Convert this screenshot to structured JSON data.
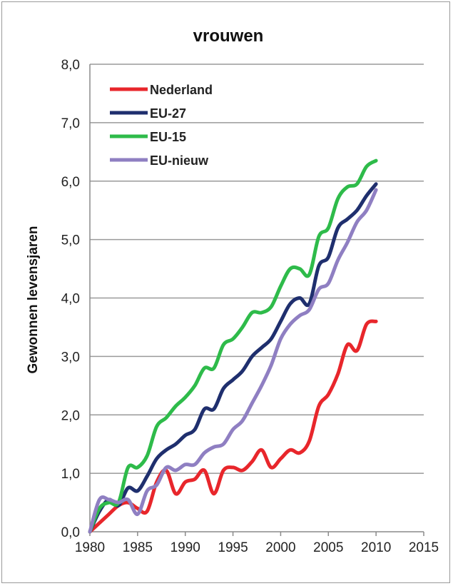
{
  "chart_data": {
    "type": "line",
    "title": "vrouwen",
    "xlabel": "",
    "ylabel": "Gewonnen levensjaren",
    "xlim": [
      1980,
      2015
    ],
    "ylim": [
      0,
      8
    ],
    "x_ticks": [
      1980,
      1985,
      1990,
      1995,
      2000,
      2005,
      2010,
      2015
    ],
    "y_ticks": [
      "0,0",
      "1,0",
      "2,0",
      "3,0",
      "4,0",
      "5,0",
      "6,0",
      "7,0",
      "8,0"
    ],
    "grid": "horizontal",
    "legend_position": "top-left",
    "x": [
      1980,
      1981,
      1982,
      1983,
      1984,
      1985,
      1986,
      1987,
      1988,
      1989,
      1990,
      1991,
      1992,
      1993,
      1994,
      1995,
      1996,
      1997,
      1998,
      1999,
      2000,
      2001,
      2002,
      2003,
      2004,
      2005,
      2006,
      2007,
      2008,
      2009,
      2010
    ],
    "series": [
      {
        "name": "Nederland",
        "color": "#e8262b",
        "values": [
          0.0,
          0.15,
          0.3,
          0.45,
          0.5,
          0.4,
          0.35,
          0.85,
          1.05,
          0.65,
          0.85,
          0.9,
          1.05,
          0.65,
          1.05,
          1.1,
          1.05,
          1.2,
          1.4,
          1.1,
          1.25,
          1.4,
          1.35,
          1.55,
          2.15,
          2.35,
          2.7,
          3.2,
          3.1,
          3.55,
          3.6
        ]
      },
      {
        "name": "EU-27",
        "color": "#1f2f6e",
        "values": [
          0.0,
          0.35,
          0.55,
          0.45,
          0.75,
          0.7,
          0.95,
          1.25,
          1.4,
          1.5,
          1.65,
          1.75,
          2.1,
          2.1,
          2.45,
          2.6,
          2.75,
          3.0,
          3.15,
          3.3,
          3.6,
          3.9,
          4.0,
          3.9,
          4.55,
          4.7,
          5.2,
          5.35,
          5.5,
          5.75,
          5.95
        ]
      },
      {
        "name": "EU-15",
        "color": "#2ebb4a",
        "values": [
          0.0,
          0.4,
          0.5,
          0.5,
          1.1,
          1.1,
          1.3,
          1.8,
          1.95,
          2.15,
          2.3,
          2.5,
          2.8,
          2.8,
          3.2,
          3.3,
          3.5,
          3.75,
          3.75,
          3.85,
          4.2,
          4.5,
          4.5,
          4.4,
          5.05,
          5.2,
          5.7,
          5.9,
          5.95,
          6.25,
          6.35
        ]
      },
      {
        "name": "EU-nieuw",
        "color": "#8f7fc2",
        "values": [
          0.0,
          0.55,
          0.55,
          0.5,
          0.55,
          0.3,
          0.7,
          0.8,
          1.1,
          1.05,
          1.15,
          1.15,
          1.35,
          1.45,
          1.5,
          1.75,
          1.9,
          2.2,
          2.5,
          2.85,
          3.3,
          3.55,
          3.7,
          3.8,
          4.15,
          4.25,
          4.65,
          4.95,
          5.3,
          5.5,
          5.85
        ]
      }
    ]
  }
}
